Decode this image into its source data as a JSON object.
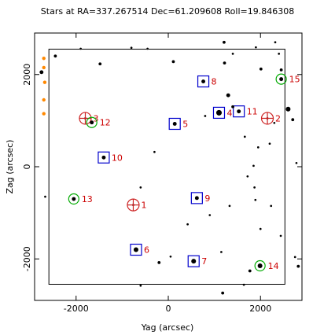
{
  "chart_data": {
    "type": "scatter",
    "title": "Stars at RA=337.267514 Dec=61.209608 Roll=19.846308",
    "xlabel": "Yag (arcsec)",
    "ylabel": "Zag (arcsec)",
    "xlim": [
      -2900,
      2900
    ],
    "ylim": [
      -2900,
      2900
    ],
    "grid": false,
    "xticks": [
      -2000,
      0,
      2000
    ],
    "yticks": [
      -2000,
      0,
      2000
    ],
    "xtick_labels": [
      "-2000",
      "0",
      "2000"
    ],
    "ytick_labels": [
      "-2000",
      "0",
      "2000"
    ],
    "colors": {
      "field_star": "#000000",
      "guide_box": "#0000cc",
      "acq_circle": "#00aa00",
      "fid_marker": "#cc2222",
      "label": "#cc0000",
      "bad_region": "#ff8800",
      "ccd_outline": "#000000"
    },
    "ccd_box": {
      "y": [
        -2590,
        2530
      ],
      "z": [
        -2550,
        2550
      ]
    },
    "stars": [
      {
        "id": "2",
        "y": 2150,
        "z": 1050,
        "kind": "fid",
        "mag": 1
      },
      {
        "id": "3",
        "y": -1800,
        "z": 1050,
        "kind": "fid",
        "mag": 1
      },
      {
        "id": "1",
        "y": -760,
        "z": -830,
        "kind": "fid",
        "mag": 1
      },
      {
        "id": "15",
        "y": 2450,
        "z": 1900,
        "kind": "acq",
        "mag": 3
      },
      {
        "id": "12",
        "y": -1660,
        "z": 960,
        "kind": "acq",
        "mag": 3
      },
      {
        "id": "13",
        "y": -2050,
        "z": -700,
        "kind": "acq",
        "mag": 3
      },
      {
        "id": "14",
        "y": 1990,
        "z": -2150,
        "kind": "acq",
        "mag": 4
      },
      {
        "id": "8",
        "y": 760,
        "z": 1850,
        "kind": "guide",
        "mag": 3
      },
      {
        "id": "4",
        "y": 1100,
        "z": 1170,
        "kind": "guide",
        "mag": 5
      },
      {
        "id": "11",
        "y": 1530,
        "z": 1200,
        "kind": "guide",
        "mag": 3
      },
      {
        "id": "5",
        "y": 140,
        "z": 930,
        "kind": "guide",
        "mag": 3
      },
      {
        "id": "10",
        "y": -1400,
        "z": 200,
        "kind": "guide",
        "mag": 3
      },
      {
        "id": "9",
        "y": 620,
        "z": -680,
        "kind": "guide",
        "mag": 3
      },
      {
        "id": "6",
        "y": -700,
        "z": -1800,
        "kind": "guide",
        "mag": 4
      },
      {
        "id": "7",
        "y": 550,
        "z": -2050,
        "kind": "guide",
        "mag": 4
      },
      {
        "id": "",
        "y": 1300,
        "z": 1550,
        "kind": "field",
        "mag": 3
      },
      {
        "id": "",
        "y": 2600,
        "z": 1250,
        "kind": "field",
        "mag": 4
      },
      {
        "id": "",
        "y": -2750,
        "z": 2050,
        "kind": "field",
        "mag": 3
      },
      {
        "id": "",
        "y": -2450,
        "z": 2400,
        "kind": "field",
        "mag": 2
      },
      {
        "id": "",
        "y": -1900,
        "z": 2560,
        "kind": "field",
        "mag": 1
      },
      {
        "id": "",
        "y": -1480,
        "z": 2230,
        "kind": "field",
        "mag": 2
      },
      {
        "id": "",
        "y": -800,
        "z": 2580,
        "kind": "field",
        "mag": 1
      },
      {
        "id": "",
        "y": -450,
        "z": 2560,
        "kind": "field",
        "mag": 1
      },
      {
        "id": "",
        "y": 1210,
        "z": 2700,
        "kind": "field",
        "mag": 2
      },
      {
        "id": "",
        "y": 1400,
        "z": 2450,
        "kind": "field",
        "mag": 1
      },
      {
        "id": "",
        "y": 1900,
        "z": 2590,
        "kind": "field",
        "mag": 1
      },
      {
        "id": "",
        "y": 2320,
        "z": 2700,
        "kind": "field",
        "mag": 1
      },
      {
        "id": "",
        "y": 2400,
        "z": 2450,
        "kind": "field",
        "mag": 1
      },
      {
        "id": "",
        "y": 1220,
        "z": 2250,
        "kind": "field",
        "mag": 2
      },
      {
        "id": "",
        "y": 110,
        "z": 2280,
        "kind": "field",
        "mag": 2
      },
      {
        "id": "",
        "y": 2010,
        "z": 2120,
        "kind": "field",
        "mag": 2
      },
      {
        "id": "",
        "y": 2450,
        "z": 2100,
        "kind": "field",
        "mag": 2
      },
      {
        "id": "",
        "y": 1400,
        "z": 1300,
        "kind": "field",
        "mag": 2
      },
      {
        "id": "",
        "y": 800,
        "z": 1100,
        "kind": "field",
        "mag": 1
      },
      {
        "id": "",
        "y": 2300,
        "z": 950,
        "kind": "field",
        "mag": 1
      },
      {
        "id": "",
        "y": 1660,
        "z": 650,
        "kind": "field",
        "mag": 1
      },
      {
        "id": "",
        "y": 2200,
        "z": 500,
        "kind": "field",
        "mag": 1
      },
      {
        "id": "",
        "y": 1950,
        "z": 420,
        "kind": "field",
        "mag": 1
      },
      {
        "id": "",
        "y": -300,
        "z": 320,
        "kind": "field",
        "mag": 1
      },
      {
        "id": "",
        "y": 1720,
        "z": -210,
        "kind": "field",
        "mag": 1
      },
      {
        "id": "",
        "y": 1850,
        "z": 20,
        "kind": "field",
        "mag": 1
      },
      {
        "id": "",
        "y": 2780,
        "z": 80,
        "kind": "field",
        "mag": 1
      },
      {
        "id": "",
        "y": -2670,
        "z": -650,
        "kind": "field",
        "mag": 1
      },
      {
        "id": "",
        "y": 1870,
        "z": -450,
        "kind": "field",
        "mag": 1
      },
      {
        "id": "",
        "y": 1890,
        "z": -720,
        "kind": "field",
        "mag": 1
      },
      {
        "id": "",
        "y": 2230,
        "z": -850,
        "kind": "field",
        "mag": 1
      },
      {
        "id": "",
        "y": 1330,
        "z": -850,
        "kind": "field",
        "mag": 1
      },
      {
        "id": "",
        "y": -600,
        "z": -450,
        "kind": "field",
        "mag": 1
      },
      {
        "id": "",
        "y": 420,
        "z": -1250,
        "kind": "field",
        "mag": 1
      },
      {
        "id": "",
        "y": 900,
        "z": -1050,
        "kind": "field",
        "mag": 1
      },
      {
        "id": "",
        "y": 1150,
        "z": -1850,
        "kind": "field",
        "mag": 1
      },
      {
        "id": "",
        "y": 2000,
        "z": -1350,
        "kind": "field",
        "mag": 1
      },
      {
        "id": "",
        "y": 2440,
        "z": -1500,
        "kind": "field",
        "mag": 1
      },
      {
        "id": "",
        "y": 50,
        "z": -1950,
        "kind": "field",
        "mag": 1
      },
      {
        "id": "",
        "y": -200,
        "z": -2080,
        "kind": "field",
        "mag": 2
      },
      {
        "id": "",
        "y": 1770,
        "z": -2260,
        "kind": "field",
        "mag": 2
      },
      {
        "id": "",
        "y": 2750,
        "z": -1960,
        "kind": "field",
        "mag": 1
      },
      {
        "id": "",
        "y": -600,
        "z": -2580,
        "kind": "field",
        "mag": 1
      },
      {
        "id": "",
        "y": 1640,
        "z": -2560,
        "kind": "field",
        "mag": 1
      },
      {
        "id": "",
        "y": 1180,
        "z": -2740,
        "kind": "field",
        "mag": 2
      },
      {
        "id": "",
        "y": 2820,
        "z": -2160,
        "kind": "field",
        "mag": 2
      },
      {
        "id": "",
        "y": 2700,
        "z": 1020,
        "kind": "field",
        "mag": 2
      }
    ],
    "bad_pixels": [
      {
        "y": -2700,
        "z": 2350
      },
      {
        "y": -2700,
        "z": 2150
      },
      {
        "y": -2680,
        "z": 1830
      },
      {
        "y": -2700,
        "z": 1450
      },
      {
        "y": -2700,
        "z": 1150
      }
    ]
  }
}
